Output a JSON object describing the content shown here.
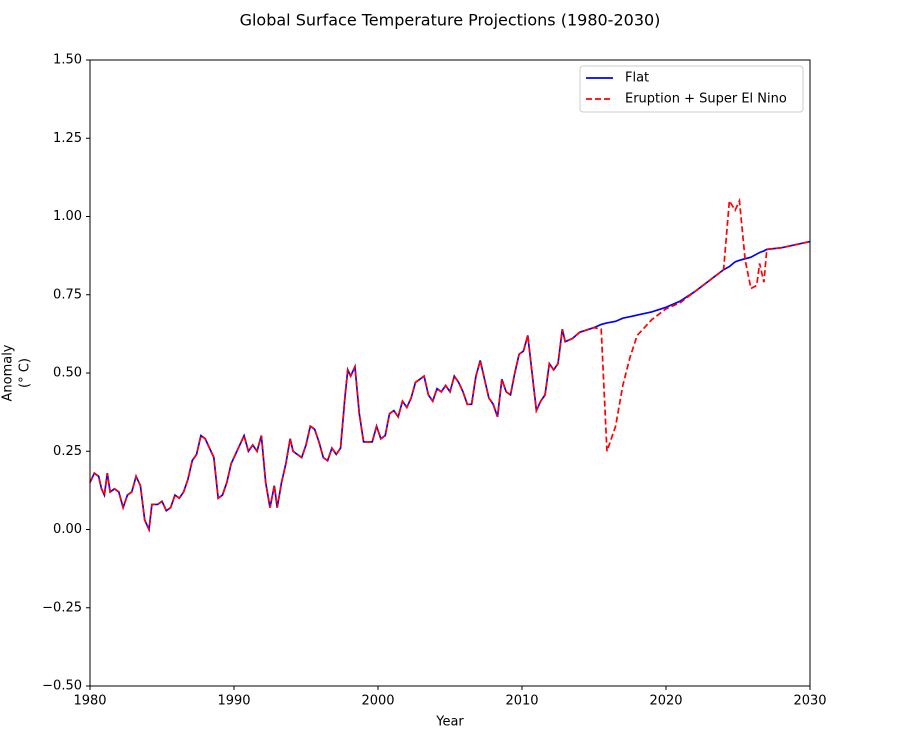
{
  "chart_data": {
    "type": "line",
    "title": "Global Surface Temperature Projections (1980-2030)",
    "xlabel": "Year",
    "ylabel": [
      "Anomaly",
      "(° C)"
    ],
    "xlim": [
      1980,
      2030
    ],
    "ylim": [
      -0.5,
      1.5
    ],
    "xticks": [
      1980,
      1990,
      2000,
      2010,
      2020,
      2030
    ],
    "yticks": [
      {
        "value": -0.5,
        "label": "−0.50"
      },
      {
        "value": -0.25,
        "label": "−0.25"
      },
      {
        "value": 0,
        "label": "0.00"
      },
      0.25,
      {
        "value": 0.5,
        "label": "0.50"
      },
      0.75,
      {
        "value": 1,
        "label": "1.00"
      },
      1.25,
      {
        "value": 1.5,
        "label": "1.50"
      }
    ],
    "grid": false,
    "legend": "upper right",
    "x": [
      1980,
      1980.3,
      1980.6,
      1980.8,
      1981,
      1981.2,
      1981.4,
      1981.7,
      1982,
      1982.3,
      1982.6,
      1982.9,
      1983.2,
      1983.5,
      1983.8,
      1984.1,
      1984.3,
      1984.7,
      1985,
      1985.3,
      1985.6,
      1985.9,
      1986.2,
      1986.5,
      1986.8,
      1987.1,
      1987.4,
      1987.7,
      1988,
      1988.3,
      1988.6,
      1988.9,
      1989.2,
      1989.5,
      1989.8,
      1990.1,
      1990.4,
      1990.7,
      1991,
      1991.3,
      1991.6,
      1991.9,
      1992.2,
      1992.5,
      1992.8,
      1993,
      1993.3,
      1993.6,
      1993.9,
      1994.1,
      1994.4,
      1994.7,
      1995,
      1995.3,
      1995.6,
      1995.9,
      1996.2,
      1996.5,
      1996.8,
      1997.1,
      1997.4,
      1997.7,
      1997.9,
      1998.1,
      1998.4,
      1998.7,
      1999,
      1999.3,
      1999.6,
      1999.9,
      2000.2,
      2000.5,
      2000.8,
      2001.1,
      2001.4,
      2001.7,
      2002,
      2002.3,
      2002.6,
      2002.9,
      2003.2,
      2003.5,
      2003.8,
      2004.1,
      2004.4,
      2004.7,
      2005,
      2005.3,
      2005.6,
      2005.9,
      2006.2,
      2006.5,
      2006.8,
      2007.1,
      2007.4,
      2007.7,
      2008,
      2008.3,
      2008.6,
      2008.9,
      2009.2,
      2009.5,
      2009.8,
      2010.1,
      2010.4,
      2010.7,
      2011,
      2011.3,
      2011.6,
      2011.9,
      2012.2,
      2012.5,
      2012.8,
      2013,
      2013.5,
      2014,
      2015,
      2015.5,
      2015.9,
      2016.5,
      2017,
      2017.5,
      2018,
      2019,
      2020,
      2021,
      2022,
      2023,
      2024,
      2024.4,
      2024.8,
      2025.1,
      2025.5,
      2025.9,
      2026.3,
      2026.5,
      2026.8,
      2027,
      2028,
      2029,
      2030
    ],
    "series": [
      {
        "name": "Flat",
        "color": "#0000ff",
        "dash": false,
        "values": [
          0.15,
          0.18,
          0.17,
          0.13,
          0.11,
          0.18,
          0.12,
          0.13,
          0.12,
          0.07,
          0.11,
          0.12,
          0.17,
          0.14,
          0.03,
          0,
          0.08,
          0.08,
          0.09,
          0.06,
          0.07,
          0.11,
          0.1,
          0.12,
          0.16,
          0.22,
          0.24,
          0.3,
          0.29,
          0.26,
          0.23,
          0.1,
          0.11,
          0.15,
          0.21,
          0.24,
          0.27,
          0.3,
          0.25,
          0.27,
          0.25,
          0.3,
          0.15,
          0.07,
          0.14,
          0.07,
          0.15,
          0.21,
          0.29,
          0.25,
          0.24,
          0.23,
          0.27,
          0.33,
          0.32,
          0.28,
          0.23,
          0.22,
          0.26,
          0.24,
          0.26,
          0.42,
          0.51,
          0.49,
          0.52,
          0.37,
          0.28,
          0.28,
          0.28,
          0.33,
          0.29,
          0.3,
          0.37,
          0.38,
          0.36,
          0.41,
          0.39,
          0.42,
          0.47,
          0.48,
          0.49,
          0.43,
          0.41,
          0.45,
          0.44,
          0.46,
          0.44,
          0.49,
          0.47,
          0.44,
          0.4,
          0.4,
          0.49,
          0.54,
          0.48,
          0.42,
          0.4,
          0.36,
          0.48,
          0.44,
          0.43,
          0.5,
          0.56,
          0.57,
          0.62,
          0.5,
          0.38,
          0.41,
          0.43,
          0.53,
          0.51,
          0.53,
          0.64,
          0.6,
          0.61,
          0.63,
          0.645,
          0.655,
          0.66,
          0.665,
          0.675,
          0.68,
          0.685,
          0.695,
          0.71,
          0.73,
          0.76,
          0.795,
          0.83,
          0.84,
          0.855,
          0.86,
          0.865,
          0.87,
          0.88,
          0.885,
          0.89,
          0.895,
          0.9,
          0.91,
          0.92
        ]
      },
      {
        "name": "Eruption + Super El Nino",
        "color": "#ff0000",
        "dash": true,
        "values": [
          0.15,
          0.18,
          0.17,
          0.13,
          0.11,
          0.18,
          0.12,
          0.13,
          0.12,
          0.07,
          0.11,
          0.12,
          0.17,
          0.14,
          0.03,
          0,
          0.08,
          0.08,
          0.09,
          0.06,
          0.07,
          0.11,
          0.1,
          0.12,
          0.16,
          0.22,
          0.24,
          0.3,
          0.29,
          0.26,
          0.23,
          0.1,
          0.11,
          0.15,
          0.21,
          0.24,
          0.27,
          0.3,
          0.25,
          0.27,
          0.25,
          0.3,
          0.15,
          0.07,
          0.14,
          0.07,
          0.15,
          0.21,
          0.29,
          0.25,
          0.24,
          0.23,
          0.27,
          0.33,
          0.32,
          0.28,
          0.23,
          0.22,
          0.26,
          0.24,
          0.26,
          0.42,
          0.51,
          0.49,
          0.52,
          0.37,
          0.28,
          0.28,
          0.28,
          0.33,
          0.29,
          0.3,
          0.37,
          0.38,
          0.36,
          0.41,
          0.39,
          0.42,
          0.47,
          0.48,
          0.49,
          0.43,
          0.41,
          0.45,
          0.44,
          0.46,
          0.44,
          0.49,
          0.47,
          0.44,
          0.4,
          0.4,
          0.49,
          0.54,
          0.48,
          0.42,
          0.4,
          0.36,
          0.48,
          0.44,
          0.43,
          0.5,
          0.56,
          0.57,
          0.62,
          0.5,
          0.38,
          0.41,
          0.43,
          0.53,
          0.51,
          0.53,
          0.64,
          0.6,
          0.61,
          0.63,
          0.645,
          0.64,
          0.25,
          0.33,
          0.46,
          0.55,
          0.62,
          0.67,
          0.705,
          0.725,
          0.76,
          0.795,
          0.83,
          1.05,
          1.02,
          1.05,
          0.86,
          0.77,
          0.78,
          0.85,
          0.79,
          0.895,
          0.9,
          0.91,
          0.92
        ]
      }
    ]
  }
}
